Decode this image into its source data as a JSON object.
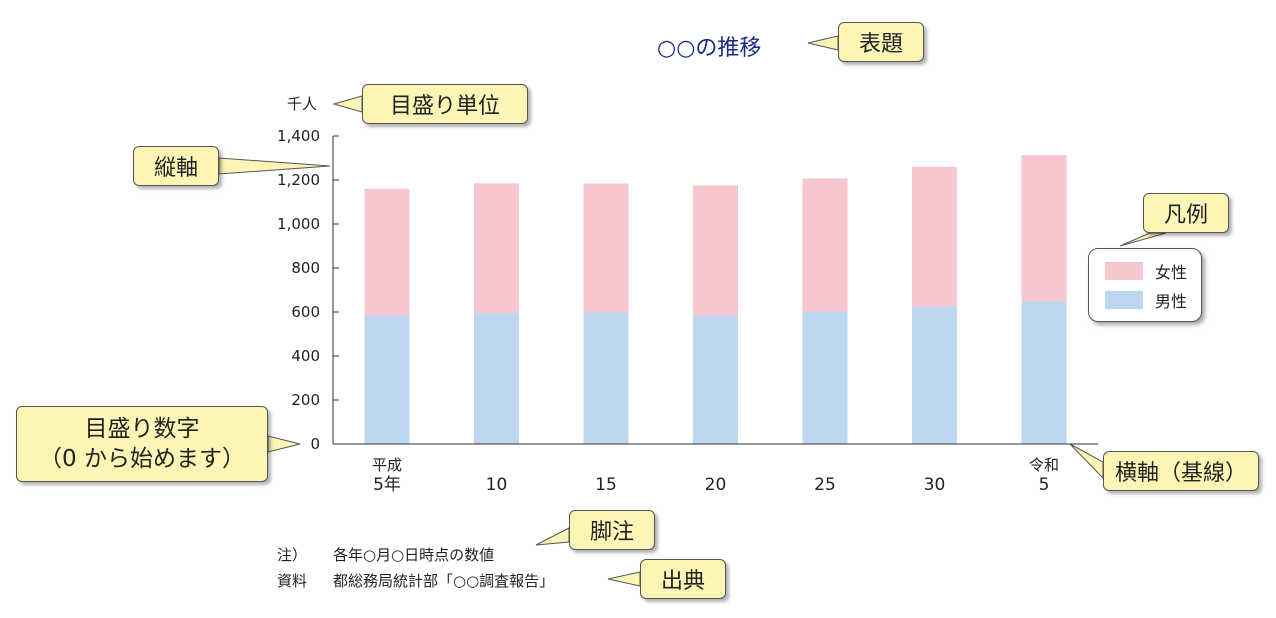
{
  "title": "○○の推移",
  "unit_label": "千人",
  "chart_data": {
    "type": "bar",
    "stacked": true,
    "categories": [
      "平成\n5年",
      "10",
      "15",
      "20",
      "25",
      "30",
      "令和\n5"
    ],
    "series": [
      {
        "name": "男性",
        "color": "#bdd7ee",
        "values": [
          585,
          595,
          598,
          585,
          602,
          625,
          648
        ]
      },
      {
        "name": "女性",
        "color": "#f7c6cf",
        "values": [
          575,
          590,
          586,
          590,
          605,
          635,
          665
        ]
      }
    ],
    "yticks": [
      "0",
      "200",
      "400",
      "600",
      "800",
      "1,000",
      "1,200",
      "1,400"
    ],
    "ylim": [
      0,
      1400
    ],
    "grid": false,
    "legend_position": "right"
  },
  "callouts": {
    "title": "表題",
    "unit": "目盛り単位",
    "vertical_axis": "縦軸",
    "tick_numbers_line1": "目盛り数字",
    "tick_numbers_line2": "（0 から始めます）",
    "horizontal_axis": "横軸（基線）",
    "legend": "凡例",
    "footnote": "脚注",
    "source": "出典"
  },
  "notes": {
    "note_label": "注）",
    "note_text": "各年○月○日時点の数値",
    "source_label": "資料",
    "source_text": "都総務局統計部「○○調査報告」"
  }
}
